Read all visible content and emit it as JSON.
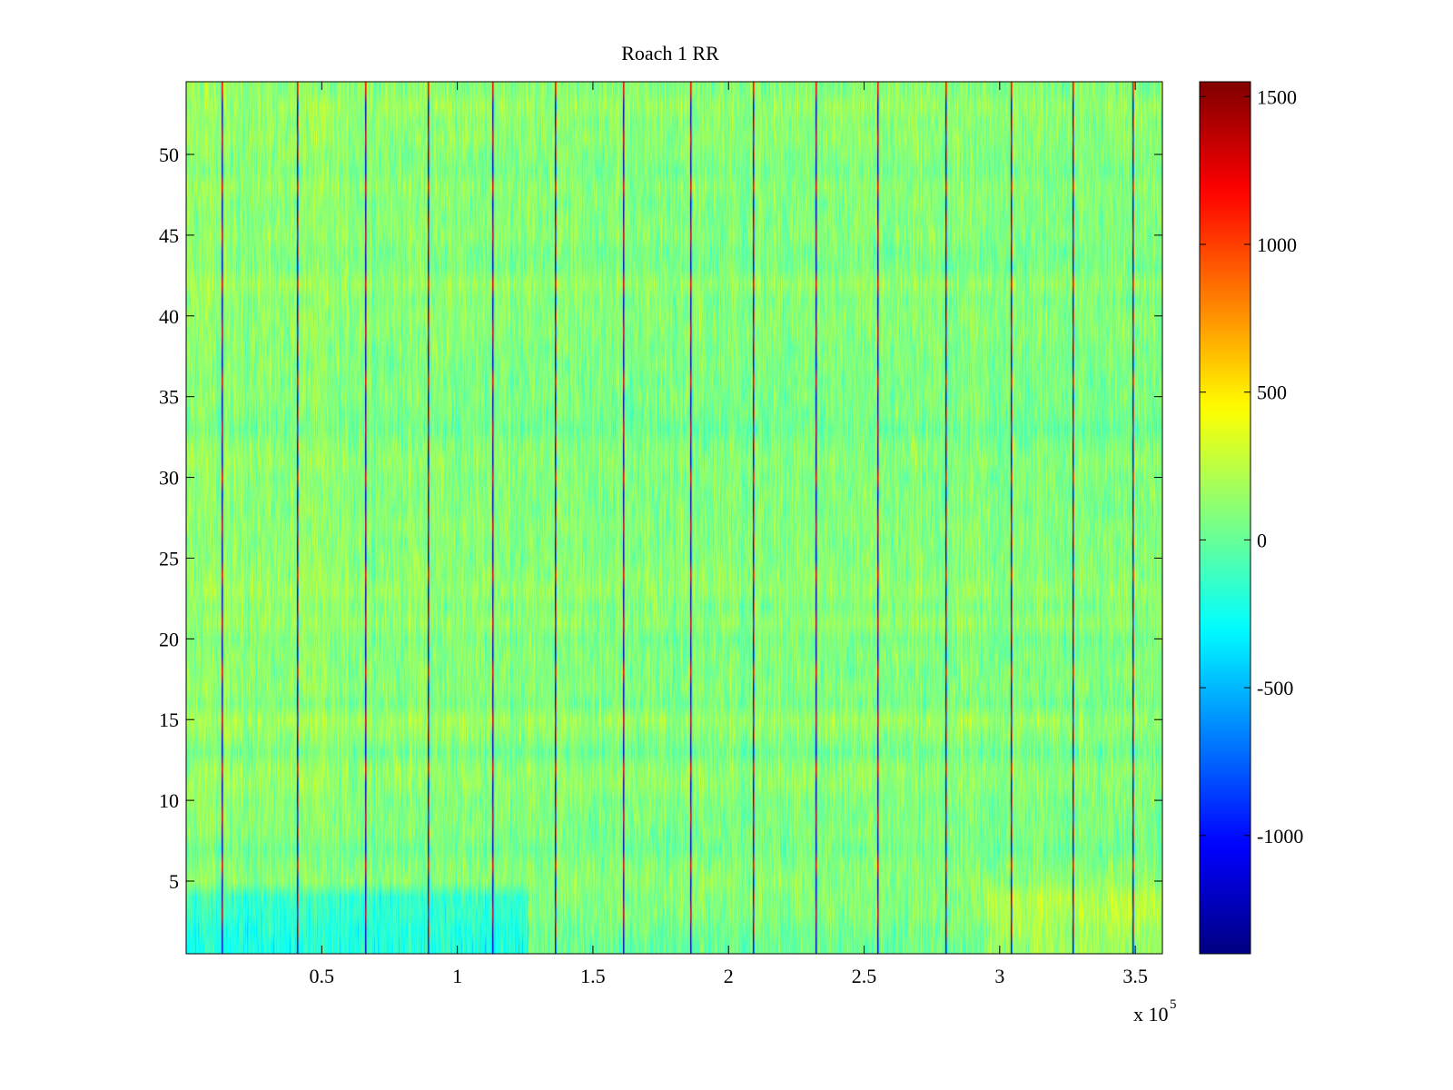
{
  "chart_data": {
    "type": "heatmap",
    "title": "Roach 1 RR",
    "xlabel": "",
    "ylabel": "",
    "x_exponent_label": {
      "base": "x 10",
      "exponent": "5"
    },
    "xlim": [
      0,
      3.6
    ],
    "ylim": [
      0.5,
      54.5
    ],
    "x_ticks": [
      0.5,
      1,
      1.5,
      2,
      2.5,
      3,
      3.5
    ],
    "x_tick_labels": [
      "0.5",
      "1",
      "1.5",
      "2",
      "2.5",
      "3",
      "3.5"
    ],
    "y_ticks": [
      5,
      10,
      15,
      20,
      25,
      30,
      35,
      40,
      45,
      50
    ],
    "y_tick_labels": [
      "5",
      "10",
      "15",
      "20",
      "25",
      "30",
      "35",
      "40",
      "45",
      "50"
    ],
    "rows": 54,
    "colormap": "jet",
    "clim": [
      -1400,
      1550
    ],
    "colorbar": {
      "ticks": [
        -1000,
        -500,
        0,
        500,
        1000,
        1500
      ],
      "tick_labels": [
        "-1000",
        "-500",
        "0",
        "500",
        "1000",
        "1500"
      ]
    },
    "artifact_columns_x1e5": [
      0.13,
      0.41,
      0.66,
      0.89,
      1.13,
      1.36,
      1.61,
      1.86,
      2.09,
      2.32,
      2.55,
      2.8,
      3.04,
      3.27,
      3.49
    ],
    "pattern_description_values": {
      "background_mean": 80,
      "noise_amplitude": 250
    }
  },
  "colors": {
    "axis": "#000000",
    "background": "#ffffff"
  }
}
